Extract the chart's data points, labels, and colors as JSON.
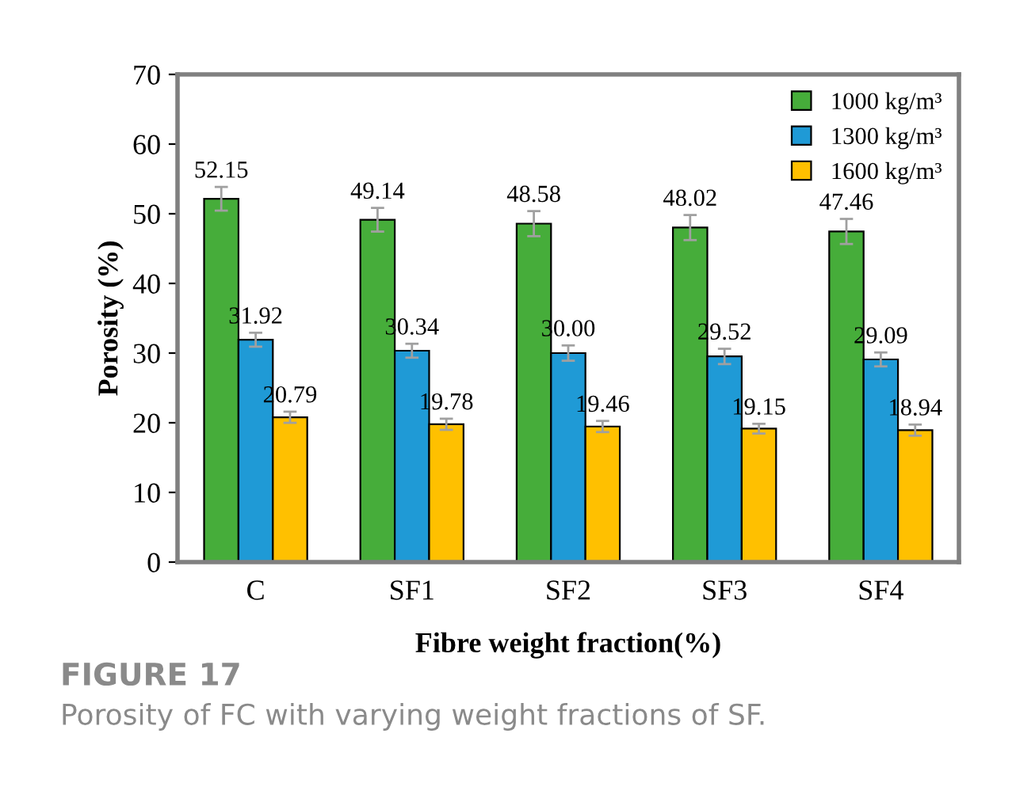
{
  "chart_data": {
    "type": "bar",
    "xlabel": "Fibre weight fraction(%)",
    "ylabel": "Porosity (%)",
    "categories": [
      "C",
      "SF1",
      "SF2",
      "SF3",
      "SF4"
    ],
    "series": [
      {
        "name": "1000 kg/m³",
        "color": "#46ad3a",
        "values": [
          52.15,
          49.14,
          48.58,
          48.02,
          47.46
        ],
        "errors": [
          1.7,
          1.7,
          1.8,
          1.8,
          1.8
        ],
        "value_labels": [
          "52.15",
          "49.14",
          "48.58",
          "48.02",
          "47.46"
        ]
      },
      {
        "name": "1300 kg/m³",
        "color": "#1f9ad6",
        "values": [
          31.92,
          30.34,
          30.0,
          29.52,
          29.09
        ],
        "errors": [
          1.0,
          1.0,
          1.1,
          1.1,
          1.0
        ],
        "value_labels": [
          "31.92",
          "30.34",
          "30.00",
          "29.52",
          "29.09"
        ]
      },
      {
        "name": "1600 kg/m³",
        "color": "#ffc000",
        "values": [
          20.79,
          19.78,
          19.46,
          19.15,
          18.94
        ],
        "errors": [
          0.8,
          0.8,
          0.8,
          0.7,
          0.8
        ],
        "value_labels": [
          "20.79",
          "19.78",
          "19.46",
          "19.15",
          "18.94"
        ]
      }
    ],
    "ylim": [
      0,
      70
    ],
    "yticks": [
      0,
      10,
      20,
      30,
      40,
      50,
      60,
      70
    ],
    "grid": false,
    "legend": "top right",
    "annotations": [
      "FIGURE 17",
      "Porosity of FC with varying weight fractions of SF."
    ]
  }
}
